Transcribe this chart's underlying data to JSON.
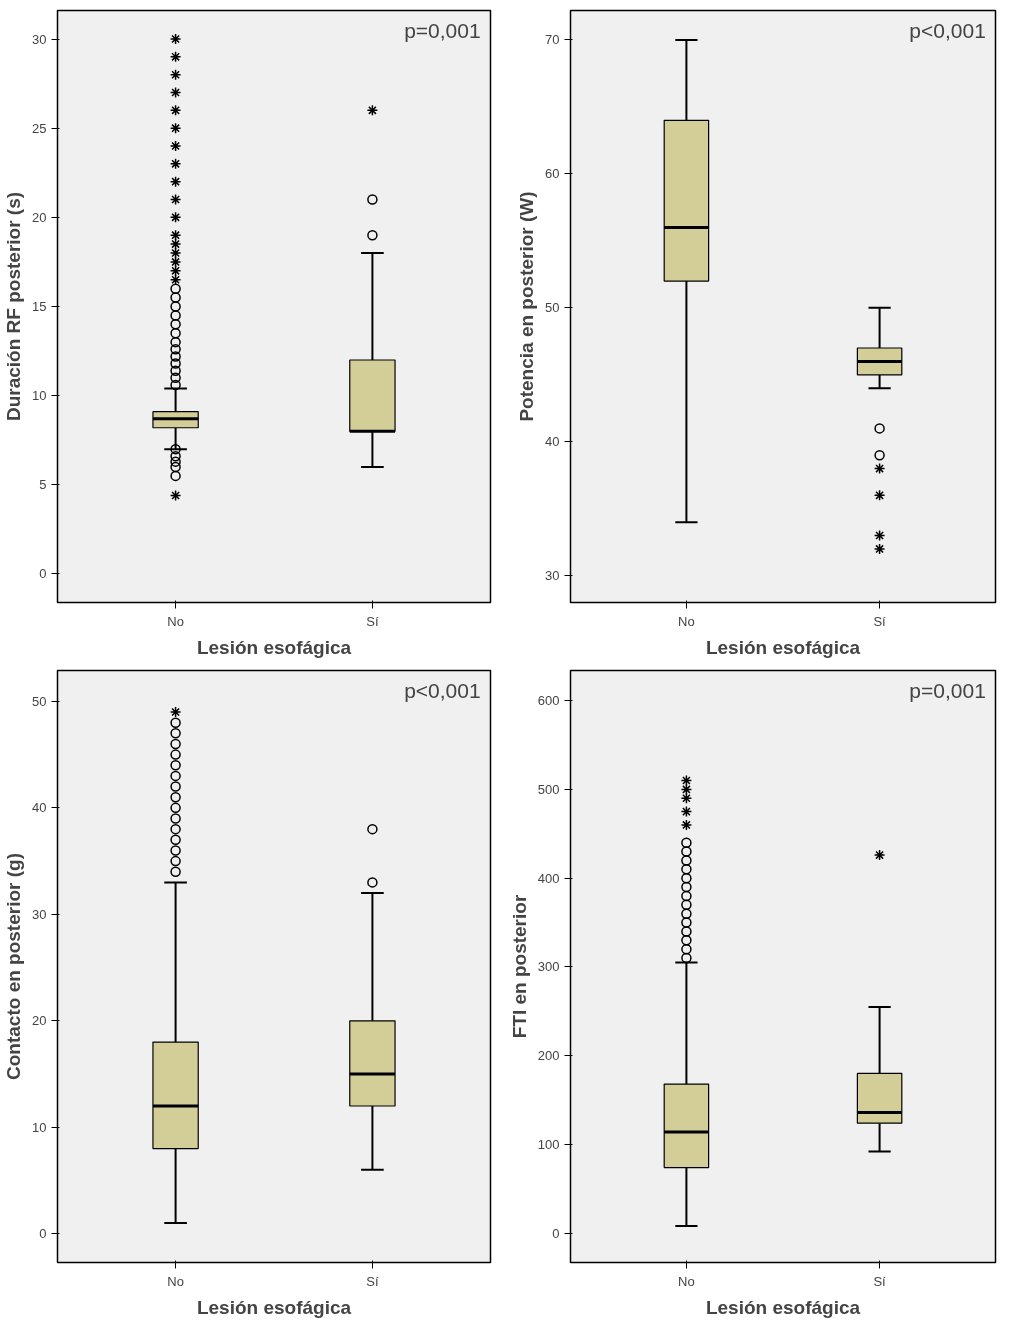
{
  "chart_data": [
    {
      "type": "box",
      "categories": [
        "No",
        "Sí"
      ],
      "xlabel": "Lesión esofágica",
      "ylabel": "Duración RF posterior (s)",
      "annotations": [
        "p=0,001"
      ],
      "ylim": [
        -1.6,
        31.6
      ],
      "yticks": [
        0,
        5,
        10,
        15,
        20,
        25,
        30
      ],
      "grid": false,
      "color": "#d3ce97",
      "boxes": [
        {
          "low": 7,
          "q1": 8.2,
          "median": 8.7,
          "q3": 9.1,
          "high": 10.4,
          "outliers": [
            5.5,
            6,
            6.3,
            6.6,
            7,
            10.6,
            11,
            11.4,
            11.8,
            12.2,
            12.6,
            13,
            13.5,
            14,
            14.5,
            15,
            15.5,
            16
          ]
        },
        {
          "low": 6,
          "q1": 8,
          "median": 8,
          "q3": 12,
          "high": 18,
          "outliers": [
            19,
            21
          ]
        }
      ],
      "series": [
        {
          "type": "scatter",
          "marker": "cross",
          "color": "#000000",
          "x": [
            "No",
            "No",
            "No",
            "No",
            "No",
            "No",
            "No",
            "No",
            "No",
            "No",
            "No",
            "No",
            "No",
            "No",
            "No",
            "No",
            "No",
            "No",
            "Sí"
          ],
          "values": [
            4.4,
            16.5,
            17,
            17.5,
            18,
            18.5,
            19,
            20,
            21,
            22,
            23,
            24,
            25,
            26,
            27,
            28,
            29,
            30,
            26
          ]
        }
      ]
    },
    {
      "type": "box",
      "categories": [
        "No",
        "Sí"
      ],
      "xlabel": "Lesión esofágica",
      "ylabel": "Potencia en posterior (W)",
      "annotations": [
        "p<0,001"
      ],
      "ylim": [
        28,
        72.2
      ],
      "yticks": [
        30,
        40,
        50,
        60,
        70
      ],
      "grid": false,
      "color": "#d3ce97",
      "boxes": [
        {
          "low": 34,
          "q1": 52,
          "median": 56,
          "q3": 64,
          "high": 70
        },
        {
          "low": 44,
          "q1": 45,
          "median": 46,
          "q3": 47,
          "high": 50,
          "outliers": [
            41,
            39
          ]
        }
      ],
      "series": [
        {
          "type": "scatter",
          "marker": "cross",
          "color": "#000000",
          "x": [
            "Sí",
            "Sí",
            "Sí",
            "Sí"
          ],
          "values": [
            38,
            36,
            33,
            32
          ]
        }
      ]
    },
    {
      "type": "box",
      "categories": [
        "No",
        "Sí"
      ],
      "xlabel": "Lesión esofágica",
      "ylabel": "Contacto en posterior (g)",
      "annotations": [
        "p<0,001"
      ],
      "ylim": [
        -2.7,
        52.9
      ],
      "yticks": [
        0,
        10,
        20,
        30,
        40,
        50
      ],
      "grid": false,
      "color": "#d3ce97",
      "boxes": [
        {
          "low": 1,
          "q1": 8,
          "median": 12,
          "q3": 18,
          "high": 33,
          "outliers": [
            34,
            35,
            36,
            37,
            38,
            39,
            40,
            41,
            42,
            43,
            44,
            45,
            46,
            47,
            48
          ]
        },
        {
          "low": 6,
          "q1": 12,
          "median": 15,
          "q3": 20,
          "high": 32,
          "outliers": [
            33,
            38
          ]
        }
      ],
      "series": [
        {
          "type": "scatter",
          "marker": "cross",
          "color": "#000000",
          "x": [
            "No"
          ],
          "values": [
            49
          ]
        }
      ]
    },
    {
      "type": "box",
      "categories": [
        "No",
        "Sí"
      ],
      "xlabel": "Lesión esofágica",
      "ylabel": "FTI en posterior",
      "annotations": [
        "p=0,001"
      ],
      "ylim": [
        -33,
        634
      ],
      "yticks": [
        0,
        100,
        200,
        300,
        400,
        500,
        600
      ],
      "grid": false,
      "color": "#d3ce97",
      "boxes": [
        {
          "low": 8,
          "q1": 74,
          "median": 114,
          "q3": 168,
          "high": 305,
          "outliers": [
            310,
            320,
            330,
            340,
            350,
            360,
            370,
            380,
            390,
            400,
            410,
            420,
            430,
            440
          ]
        },
        {
          "low": 92,
          "q1": 124,
          "median": 136,
          "q3": 180,
          "high": 255
        }
      ],
      "series": [
        {
          "type": "scatter",
          "marker": "cross",
          "color": "#000000",
          "x": [
            "No",
            "No",
            "No",
            "No",
            "No",
            "Sí"
          ],
          "values": [
            460,
            475,
            490,
            500,
            510,
            426
          ]
        }
      ]
    }
  ]
}
